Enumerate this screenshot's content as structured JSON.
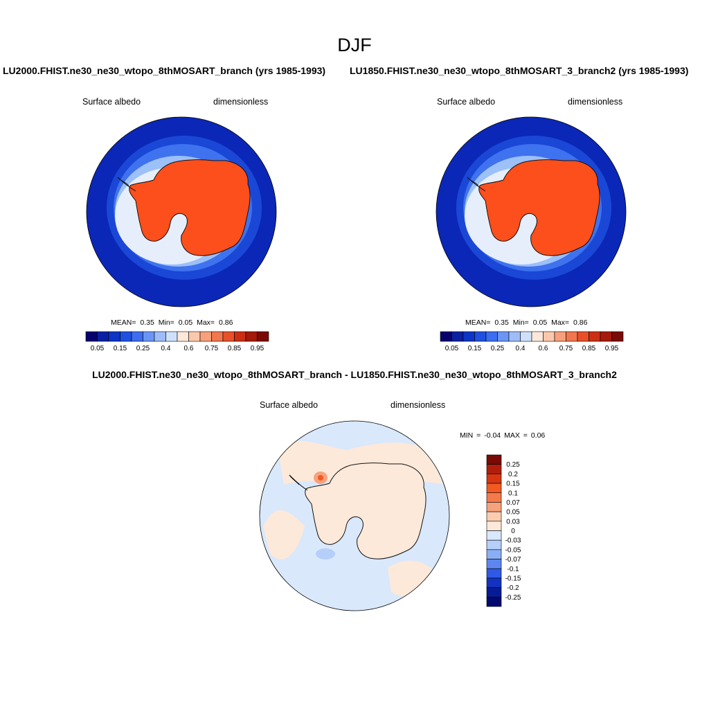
{
  "season": "DJF",
  "panels": [
    {
      "case_title": "LU2000.FHIST.ne30_ne30_wtopo_8thMOSART_branch (yrs 1985-1993)",
      "variable": "Surface albedo",
      "units": "dimensionless",
      "stats": {
        "mean_label": "MEAN=",
        "mean": "0.35",
        "min_label": "Min=",
        "min": "0.05",
        "max_label": "Max=",
        "max": "0.86"
      },
      "colorbar_labels": [
        "0.05",
        "0.15",
        "0.25",
        "0.4",
        "0.6",
        "0.75",
        "0.85",
        "0.95"
      ]
    },
    {
      "case_title": "LU1850.FHIST.ne30_ne30_wtopo_8thMOSART_3_branch2 (yrs 1985-1993)",
      "variable": "Surface albedo",
      "units": "dimensionless",
      "stats": {
        "mean_label": "MEAN=",
        "mean": "0.35",
        "min_label": "Min=",
        "min": "0.05",
        "max_label": "Max=",
        "max": "0.86"
      },
      "colorbar_labels": [
        "0.05",
        "0.15",
        "0.25",
        "0.4",
        "0.6",
        "0.75",
        "0.85",
        "0.95"
      ]
    }
  ],
  "diff_panel": {
    "case_title": "LU2000.FHIST.ne30_ne30_wtopo_8thMOSART_branch - LU1850.FHIST.ne30_ne30_wtopo_8thMOSART_3_branch2",
    "variable": "Surface albedo",
    "units": "dimensionless",
    "minmax": {
      "min_label": "MIN =",
      "min": "-0.04",
      "max_label": "MAX =",
      "max": "0.06"
    },
    "colorbar_labels": [
      "0.25",
      "0.2",
      "0.15",
      "0.1",
      "0.07",
      "0.05",
      "0.03",
      "0",
      "-0.03",
      "-0.05",
      "-0.07",
      "-0.1",
      "-0.15",
      "-0.2",
      "-0.25"
    ]
  },
  "colors": {
    "albedo_scale": [
      "#08006e",
      "#0b1fa3",
      "#0d35c6",
      "#1f50e0",
      "#3d6df0",
      "#6b95f5",
      "#9ebcf8",
      "#cfe0fb",
      "#fde8da",
      "#fbc8ad",
      "#f7a07a",
      "#f2764e",
      "#e8502a",
      "#cc2e12",
      "#a51a0a",
      "#7a0a05"
    ],
    "diff_scale": [
      "#7a0a05",
      "#b01e0b",
      "#d83612",
      "#f25a22",
      "#f57a4a",
      "#f8a27c",
      "#fbccb0",
      "#fde9da",
      "#d9e8fb",
      "#b5cffa",
      "#8aaef6",
      "#5d86f0",
      "#2e5ae5",
      "#1233c2",
      "#061b96",
      "#000a6e"
    ],
    "ocean": "#0b2fbf",
    "ice_sheet": "#fd4f1c"
  }
}
